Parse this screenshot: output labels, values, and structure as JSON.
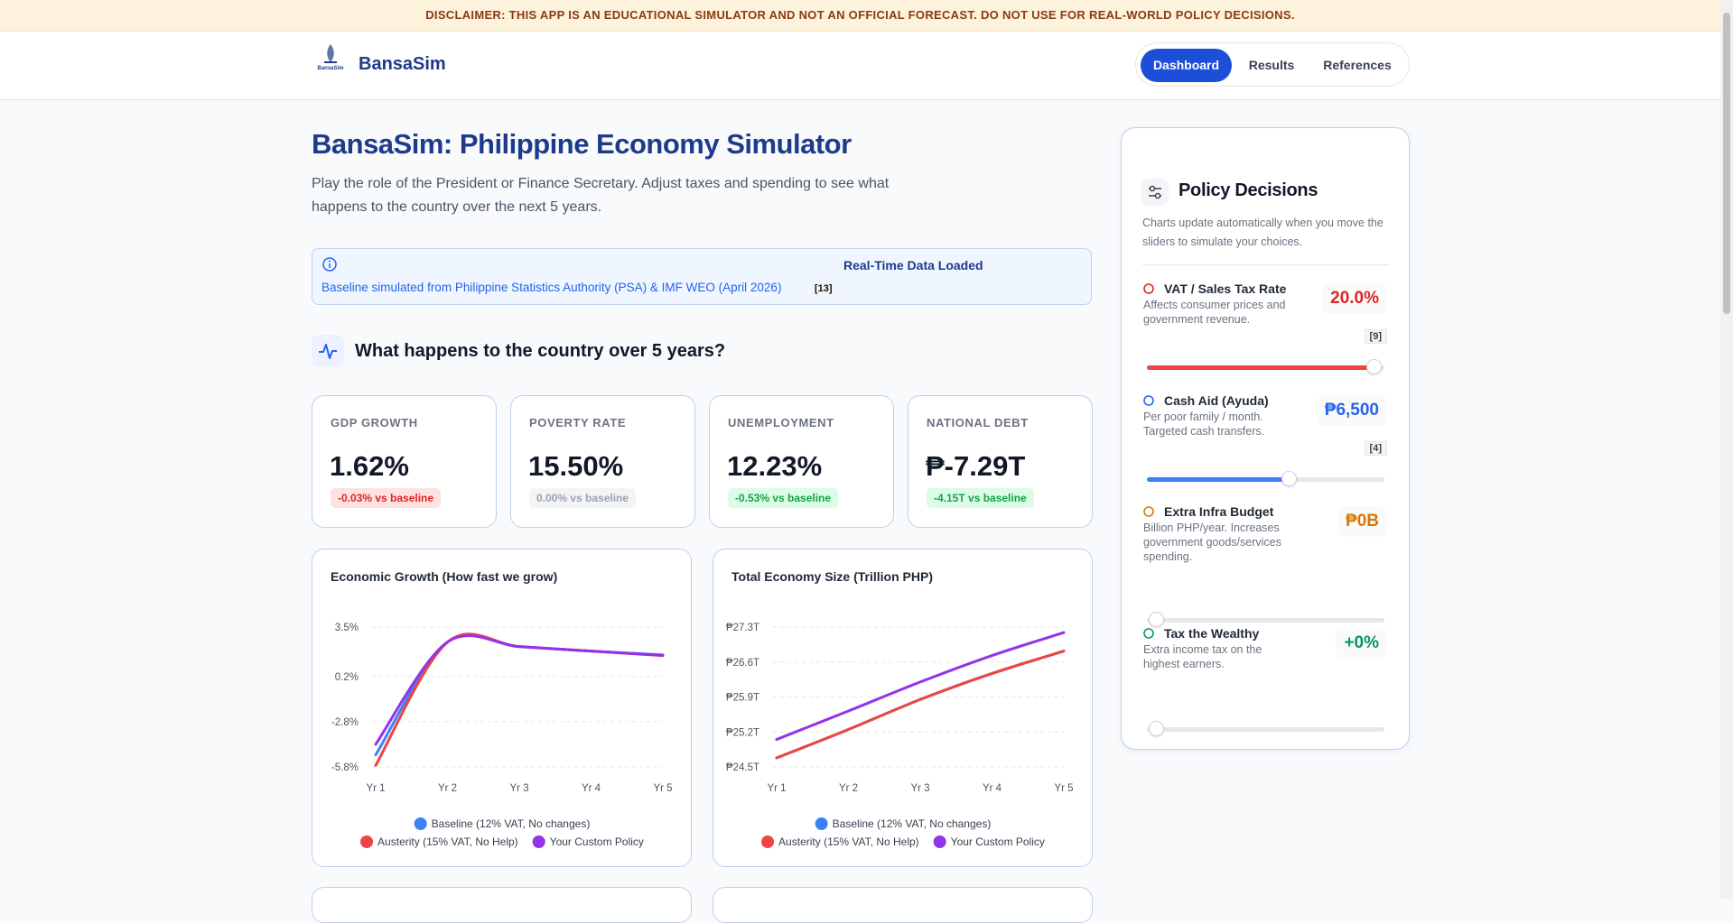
{
  "disclaimer": "DISCLAIMER: THIS APP IS AN EDUCATIONAL SIMULATOR AND NOT AN OFFICIAL FORECAST. DO NOT USE FOR REAL-WORLD POLICY DECISIONS.",
  "header": {
    "logo_caption": "BansaSim",
    "brand": "BansaSim",
    "nav": [
      "Dashboard",
      "Results",
      "References"
    ]
  },
  "hero": {
    "title": "BansaSim: Philippine Economy Simulator",
    "description": "Play the role of the President or Finance Secretary. Adjust taxes and spending to see what happens to the country over the next 5 years."
  },
  "info_box": {
    "title": "Real-Time Data Loaded",
    "source": "Baseline simulated from Philippine Statistics Authority (PSA) & IMF WEO (April 2026)",
    "citation": "[13]"
  },
  "section_title": "What happens to the country over 5 years?",
  "metrics": [
    {
      "label": "GDP GROWTH",
      "value": "1.62%",
      "delta": "-0.03% vs baseline",
      "tone": "negative"
    },
    {
      "label": "POVERTY RATE",
      "value": "15.50%",
      "delta": "0.00% vs baseline",
      "tone": "neutral"
    },
    {
      "label": "UNEMPLOYMENT",
      "value": "12.23%",
      "delta": "-0.53% vs baseline",
      "tone": "positive"
    },
    {
      "label": "NATIONAL DEBT",
      "value": "₱-7.29T",
      "delta": "-4.15T vs baseline",
      "tone": "positive"
    }
  ],
  "charts": [
    {
      "type": "line",
      "title": "Economic Growth (How fast we grow)",
      "categories": [
        "Yr 1",
        "Yr 2",
        "Yr 3",
        "Yr 4",
        "Yr 5"
      ],
      "ylim": [
        -5.8,
        3.5
      ],
      "yticks": [
        {
          "value": 3.5,
          "label": "3.5%"
        },
        {
          "value": 0.2,
          "label": "0.2%"
        },
        {
          "value": -2.8,
          "label": "-2.8%"
        },
        {
          "value": -5.8,
          "label": "-5.8%"
        }
      ],
      "grid": true,
      "series": [
        {
          "name": "Baseline (12% VAT, No changes)",
          "color": "#3b82f6",
          "values": [
            -5.0,
            2.5,
            2.2,
            1.9,
            1.65
          ]
        },
        {
          "name": "Austerity (15% VAT, No Help)",
          "color": "#ef4444",
          "values": [
            -5.7,
            2.5,
            2.2,
            1.9,
            1.6
          ]
        },
        {
          "name": "Your Custom Policy",
          "color": "#9333ea",
          "values": [
            -4.3,
            2.5,
            2.2,
            1.9,
            1.62
          ]
        }
      ]
    },
    {
      "type": "line",
      "title": "Total Economy Size (Trillion PHP)",
      "categories": [
        "Yr 1",
        "Yr 2",
        "Yr 3",
        "Yr 4",
        "Yr 5"
      ],
      "ylim": [
        24.5,
        27.3
      ],
      "yticks": [
        {
          "value": 27.3,
          "label": "₱27.3T"
        },
        {
          "value": 26.6,
          "label": "₱26.6T"
        },
        {
          "value": 25.9,
          "label": "₱25.9T"
        },
        {
          "value": 25.2,
          "label": "₱25.2T"
        },
        {
          "value": 24.5,
          "label": "₱24.5T"
        }
      ],
      "grid": true,
      "series": [
        {
          "name": "Baseline (12% VAT, No changes)",
          "color": "#3b82f6",
          "values": [
            24.68,
            25.25,
            25.85,
            26.37,
            26.82
          ]
        },
        {
          "name": "Austerity (15% VAT, No Help)",
          "color": "#ef4444",
          "values": [
            24.68,
            25.25,
            25.85,
            26.37,
            26.82
          ]
        },
        {
          "name": "Your Custom Policy",
          "color": "#9333ea",
          "values": [
            25.05,
            25.62,
            26.2,
            26.73,
            27.19
          ]
        }
      ]
    }
  ],
  "policy": {
    "title": "Policy Decisions",
    "description": "Charts update automatically when you move the sliders to simulate your choices.",
    "controls": [
      {
        "label": "VAT / Sales Tax Rate",
        "description": "Affects consumer prices and government revenue.",
        "value": "20.0%",
        "citation": "[9]",
        "color": "#dc2626"
      },
      {
        "label": "Cash Aid (Ayuda)",
        "description": "Per poor family / month. Targeted cash transfers.",
        "value": "₱6,500",
        "citation": "[4]",
        "color": "#2563eb"
      },
      {
        "label": "Extra Infra Budget",
        "description": "Billion PHP/year. Increases government goods/services spending.",
        "value": "₱0B",
        "color": "#d97706"
      },
      {
        "label": "Tax the Wealthy",
        "description": "Extra income tax on the highest earners.",
        "value": "+0%",
        "color": "#059669"
      }
    ]
  }
}
